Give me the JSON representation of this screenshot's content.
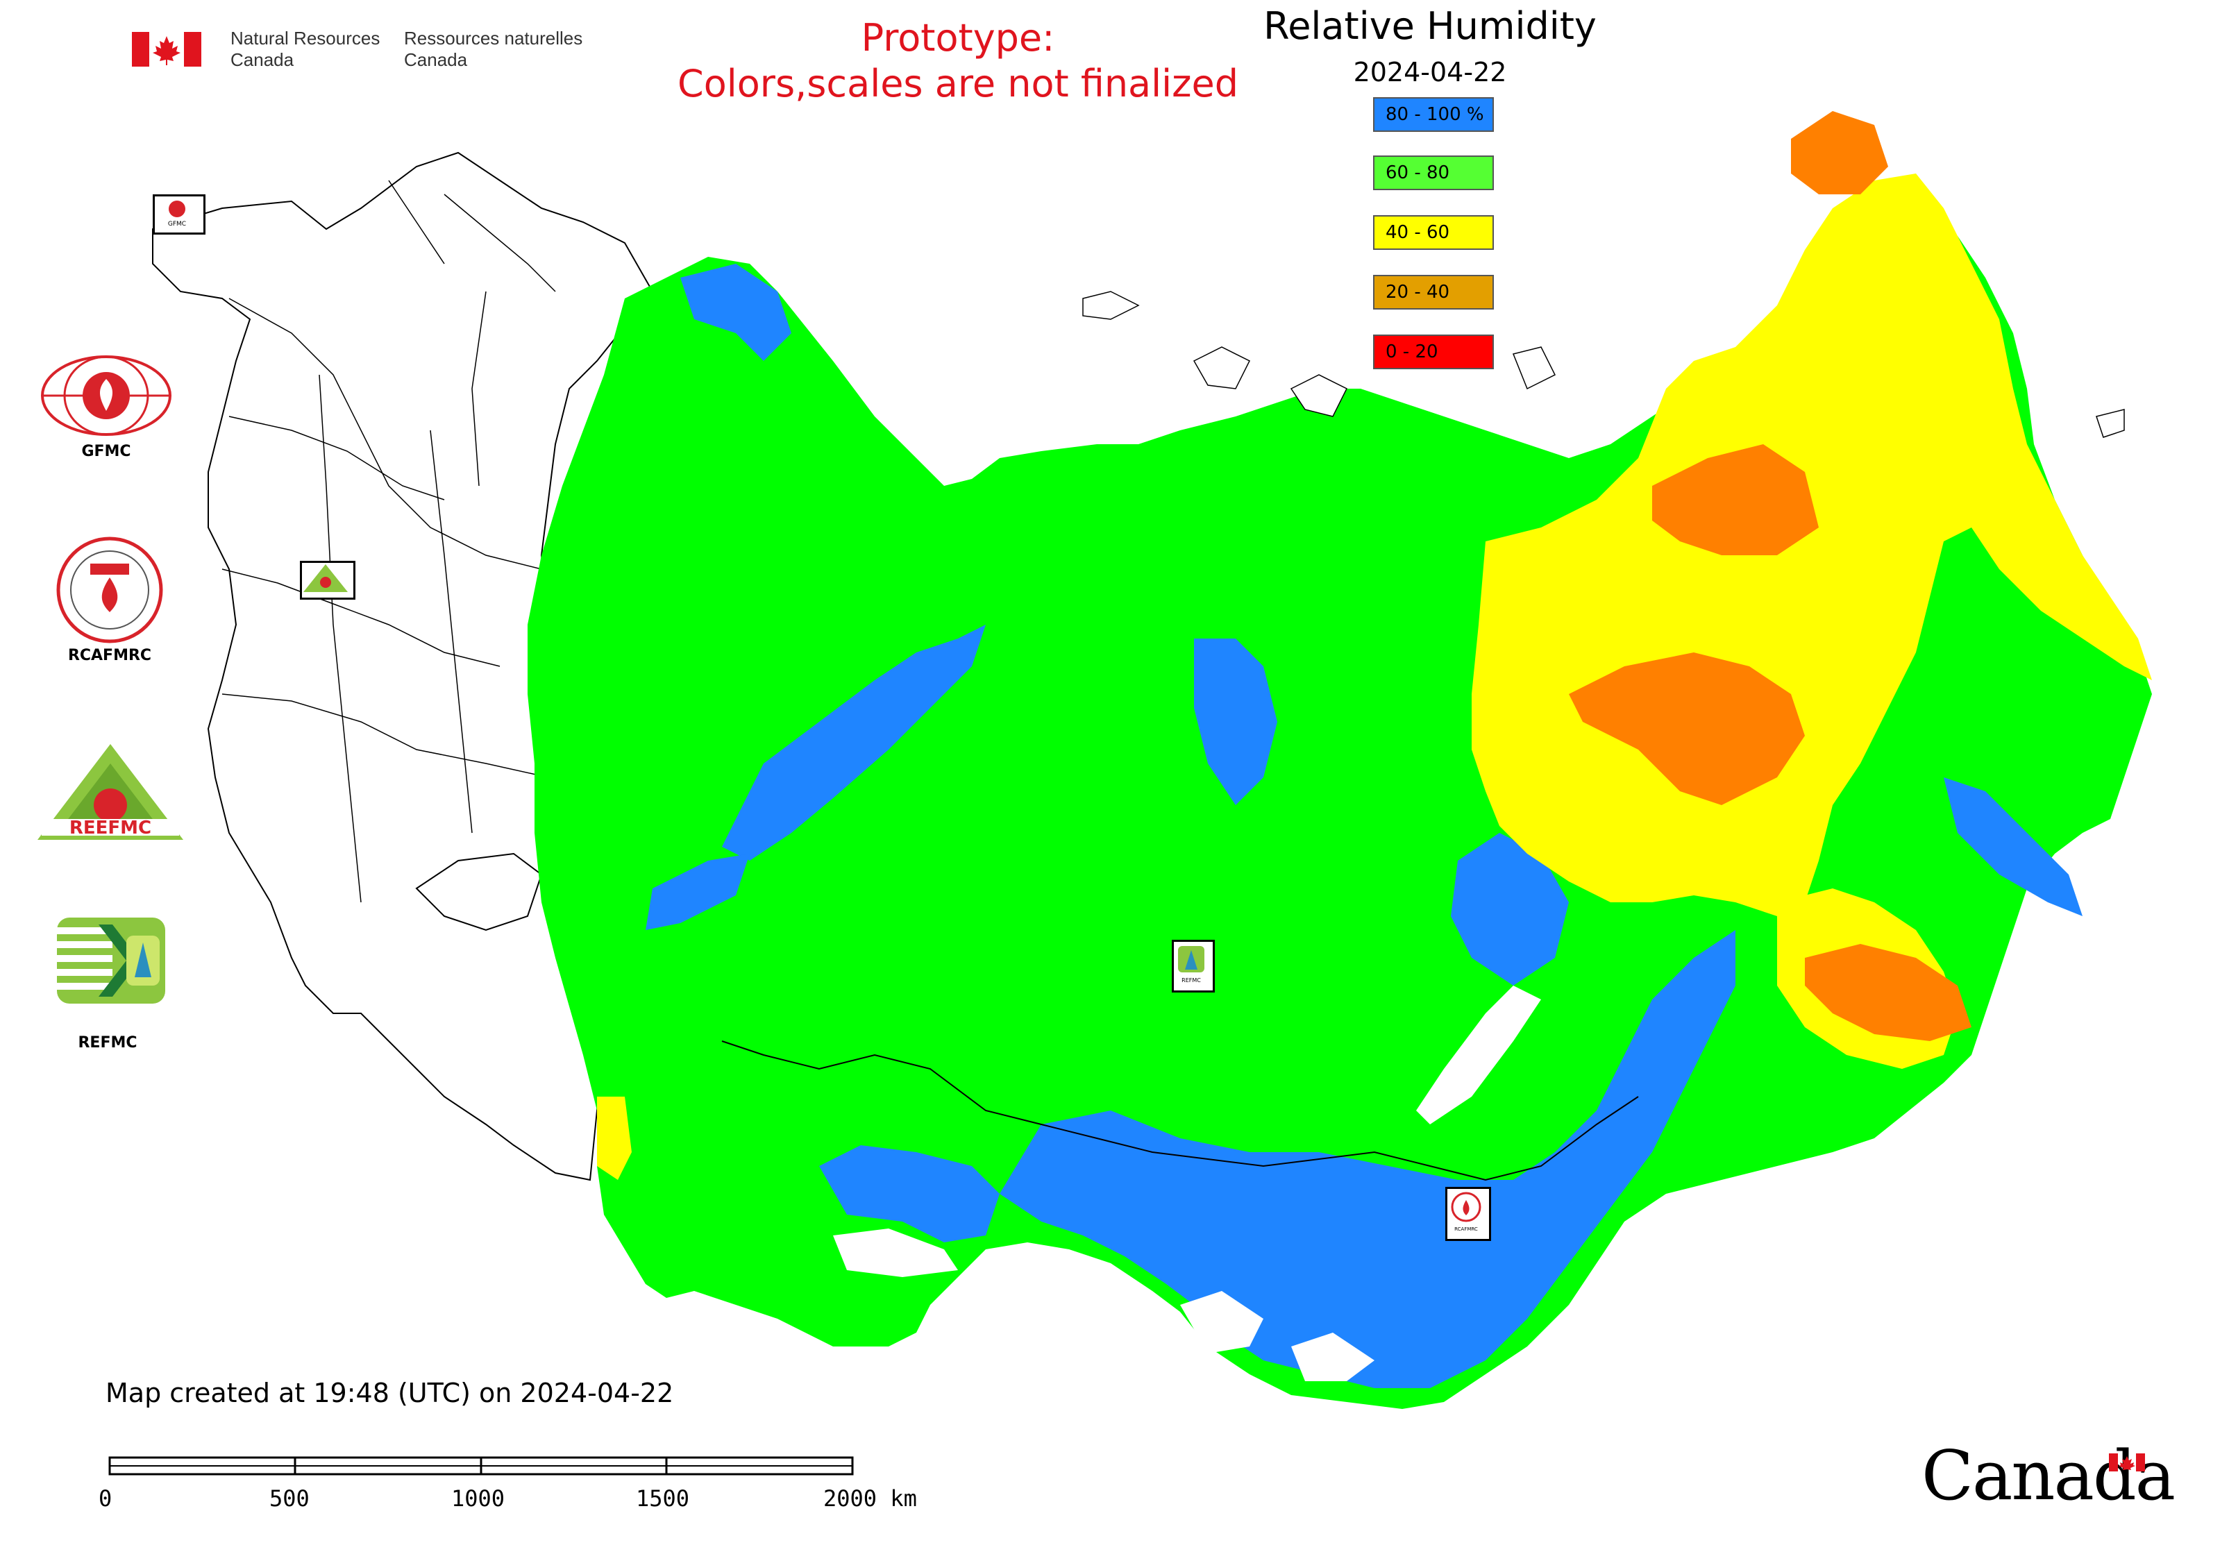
{
  "header": {
    "dept_en_line1": "Natural Resources",
    "dept_en_line2": "Canada",
    "dept_fr_line1": "Ressources naturelles",
    "dept_fr_line2": "Canada"
  },
  "notice": {
    "line1": "Prototype:",
    "line2": "Colors,scales are not finalized"
  },
  "map": {
    "title": "Relative Humidity",
    "date": "2024-04-22"
  },
  "legend": [
    {
      "label": "80 - 100 %",
      "color": "#1f85ff"
    },
    {
      "label": "60 - 80",
      "color": "#55ff33"
    },
    {
      "label": "40 - 60",
      "color": "#ffff00"
    },
    {
      "label": "20 - 40",
      "color": "#e39f00"
    },
    {
      "label": "0 - 20",
      "color": "#ff0000"
    }
  ],
  "partners": [
    {
      "label": "GFMC"
    },
    {
      "label": "RCAFMRC"
    },
    {
      "label": "REEFMC"
    },
    {
      "label": "REFMC"
    }
  ],
  "footer": {
    "created": "Map created at 19:48 (UTC) on 2024-04-22",
    "scale_labels": [
      "0",
      "500",
      "1000",
      "1500",
      "2000 km"
    ],
    "wordmark": "Canada"
  },
  "colors": {
    "very_humid": "#1f85ff",
    "humid": "#00ff00",
    "moderate": "#ffff00",
    "dry": "#ff8000",
    "very_dry": "#ff0000",
    "notice_red": "#e0141e"
  },
  "icons": [
    "canada-flag-icon",
    "gfmc-logo-icon",
    "rcafmrc-logo-icon",
    "reefmc-logo-icon",
    "refmc-logo-icon",
    "canada-wordmark-flag-icon"
  ]
}
